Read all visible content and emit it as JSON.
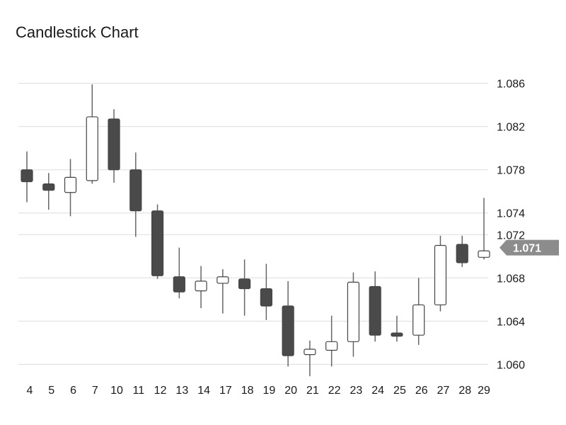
{
  "title": "Candlestick Chart",
  "chart_data": {
    "type": "candlestick",
    "title": "Candlestick Chart",
    "xlabel": "",
    "ylabel": "",
    "ylim": [
      1.0595,
      1.0865
    ],
    "y_ticks": [
      "1.060",
      "1.064",
      "1.068",
      "1.072",
      "1.074",
      "1.078",
      "1.082",
      "1.086"
    ],
    "grid": true,
    "legend": "none",
    "current_value_label": "1.071",
    "current_value": 1.0708,
    "colors": {
      "up_fill": "#ffffff",
      "down_fill": "#4a4a4a",
      "stroke": "#444444",
      "wick": "#666666",
      "grid": "#dddddd",
      "badge": "#8c8c8c"
    },
    "candles": [
      {
        "date": "4",
        "open": 1.078,
        "high": 1.0797,
        "low": 1.075,
        "close": 1.0769
      },
      {
        "date": "5",
        "open": 1.0767,
        "high": 1.0777,
        "low": 1.0743,
        "close": 1.0761
      },
      {
        "date": "6",
        "open": 1.0759,
        "high": 1.079,
        "low": 1.0737,
        "close": 1.0773
      },
      {
        "date": "7",
        "open": 1.077,
        "high": 1.0859,
        "low": 1.0767,
        "close": 1.0829
      },
      {
        "date": "10",
        "open": 1.0827,
        "high": 1.0836,
        "low": 1.0768,
        "close": 1.078
      },
      {
        "date": "11",
        "open": 1.078,
        "high": 1.0796,
        "low": 1.0718,
        "close": 1.0742
      },
      {
        "date": "12",
        "open": 1.0742,
        "high": 1.0748,
        "low": 1.0679,
        "close": 1.0682
      },
      {
        "date": "13",
        "open": 1.0681,
        "high": 1.0708,
        "low": 1.0661,
        "close": 1.0667
      },
      {
        "date": "14",
        "open": 1.0668,
        "high": 1.0691,
        "low": 1.0652,
        "close": 1.0677
      },
      {
        "date": "17",
        "open": 1.0675,
        "high": 1.0688,
        "low": 1.0647,
        "close": 1.0681
      },
      {
        "date": "18",
        "open": 1.0679,
        "high": 1.0697,
        "low": 1.0645,
        "close": 1.067
      },
      {
        "date": "19",
        "open": 1.067,
        "high": 1.0693,
        "low": 1.0641,
        "close": 1.0654
      },
      {
        "date": "20",
        "open": 1.0654,
        "high": 1.0677,
        "low": 1.0598,
        "close": 1.0608
      },
      {
        "date": "21",
        "open": 1.0609,
        "high": 1.0622,
        "low": 1.0589,
        "close": 1.0614
      },
      {
        "date": "22",
        "open": 1.0613,
        "high": 1.0645,
        "low": 1.0598,
        "close": 1.0621
      },
      {
        "date": "23",
        "open": 1.0621,
        "high": 1.0685,
        "low": 1.0607,
        "close": 1.0676
      },
      {
        "date": "24",
        "open": 1.0672,
        "high": 1.0686,
        "low": 1.0621,
        "close": 1.0627
      },
      {
        "date": "25",
        "open": 1.0629,
        "high": 1.0645,
        "low": 1.0621,
        "close": 1.0626
      },
      {
        "date": "26",
        "open": 1.0627,
        "high": 1.068,
        "low": 1.0618,
        "close": 1.0655
      },
      {
        "date": "27",
        "open": 1.0655,
        "high": 1.0719,
        "low": 1.0649,
        "close": 1.071
      },
      {
        "date": "28",
        "open": 1.0711,
        "high": 1.0719,
        "low": 1.069,
        "close": 1.0694
      },
      {
        "date": "29",
        "open": 1.0699,
        "high": 1.0754,
        "low": 1.0697,
        "close": 1.0705
      }
    ]
  }
}
